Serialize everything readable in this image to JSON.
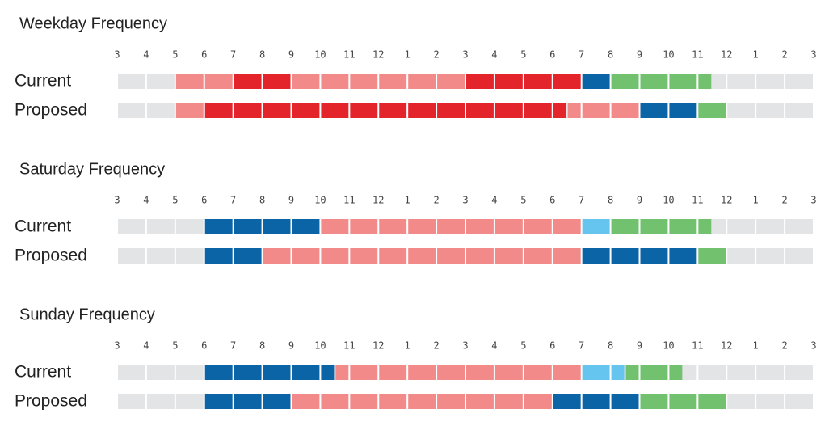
{
  "chart_data": [
    {
      "type": "timeline",
      "title": "Weekday Frequency",
      "xlim": [
        3,
        27
      ],
      "xticks": [
        3,
        4,
        5,
        6,
        7,
        8,
        9,
        10,
        11,
        12,
        {
          "value": 13,
          "label": "1"
        },
        {
          "value": 14,
          "label": "2"
        },
        {
          "value": 15,
          "label": "3"
        },
        {
          "value": 16,
          "label": "4"
        },
        {
          "value": 17,
          "label": "5"
        },
        {
          "value": 18,
          "label": "6"
        },
        {
          "value": 19,
          "label": "7"
        },
        {
          "value": 20,
          "label": "8"
        },
        {
          "value": 21,
          "label": "9"
        },
        {
          "value": 22,
          "label": "10"
        },
        {
          "value": 23,
          "label": "11"
        },
        {
          "value": 24,
          "label": "12"
        },
        {
          "value": 25,
          "label": "1"
        },
        {
          "value": 26,
          "label": "2"
        },
        {
          "value": 27,
          "label": "3"
        }
      ],
      "rows": [
        {
          "label": "Current",
          "segments": [
            {
              "start": 5,
              "end": 7,
              "color": "#f28a8a"
            },
            {
              "start": 7,
              "end": 9,
              "color": "#e3242b"
            },
            {
              "start": 9,
              "end": 15,
              "color": "#f28a8a"
            },
            {
              "start": 15,
              "end": 19,
              "color": "#e3242b"
            },
            {
              "start": 19,
              "end": 20,
              "color": "#0b64a6"
            },
            {
              "start": 20,
              "end": 23.5,
              "color": "#72c16f"
            }
          ]
        },
        {
          "label": "Proposed",
          "segments": [
            {
              "start": 5,
              "end": 6,
              "color": "#f28a8a"
            },
            {
              "start": 6,
              "end": 18.5,
              "color": "#e3242b"
            },
            {
              "start": 18.5,
              "end": 21,
              "color": "#f28a8a"
            },
            {
              "start": 21,
              "end": 23,
              "color": "#0b64a6"
            },
            {
              "start": 23,
              "end": 24,
              "color": "#72c16f"
            }
          ]
        }
      ]
    },
    {
      "type": "timeline",
      "title": "Saturday Frequency",
      "xlim": [
        3,
        27
      ],
      "xticks": [
        3,
        4,
        5,
        6,
        7,
        8,
        9,
        10,
        11,
        12,
        {
          "value": 13,
          "label": "1"
        },
        {
          "value": 14,
          "label": "2"
        },
        {
          "value": 15,
          "label": "3"
        },
        {
          "value": 16,
          "label": "4"
        },
        {
          "value": 17,
          "label": "5"
        },
        {
          "value": 18,
          "label": "6"
        },
        {
          "value": 19,
          "label": "7"
        },
        {
          "value": 20,
          "label": "8"
        },
        {
          "value": 21,
          "label": "9"
        },
        {
          "value": 22,
          "label": "10"
        },
        {
          "value": 23,
          "label": "11"
        },
        {
          "value": 24,
          "label": "12"
        },
        {
          "value": 25,
          "label": "1"
        },
        {
          "value": 26,
          "label": "2"
        },
        {
          "value": 27,
          "label": "3"
        }
      ],
      "rows": [
        {
          "label": "Current",
          "segments": [
            {
              "start": 6,
              "end": 10,
              "color": "#0b64a6"
            },
            {
              "start": 10,
              "end": 19,
              "color": "#f28a8a"
            },
            {
              "start": 19,
              "end": 20,
              "color": "#66c5ee"
            },
            {
              "start": 20,
              "end": 23.5,
              "color": "#72c16f"
            }
          ]
        },
        {
          "label": "Proposed",
          "segments": [
            {
              "start": 6,
              "end": 8,
              "color": "#0b64a6"
            },
            {
              "start": 8,
              "end": 19,
              "color": "#f28a8a"
            },
            {
              "start": 19,
              "end": 23,
              "color": "#0b64a6"
            },
            {
              "start": 23,
              "end": 24,
              "color": "#72c16f"
            }
          ]
        }
      ]
    },
    {
      "type": "timeline",
      "title": "Sunday Frequency",
      "xlim": [
        3,
        27
      ],
      "xticks": [
        3,
        4,
        5,
        6,
        7,
        8,
        9,
        10,
        11,
        12,
        {
          "value": 13,
          "label": "1"
        },
        {
          "value": 14,
          "label": "2"
        },
        {
          "value": 15,
          "label": "3"
        },
        {
          "value": 16,
          "label": "4"
        },
        {
          "value": 17,
          "label": "5"
        },
        {
          "value": 18,
          "label": "6"
        },
        {
          "value": 19,
          "label": "7"
        },
        {
          "value": 20,
          "label": "8"
        },
        {
          "value": 21,
          "label": "9"
        },
        {
          "value": 22,
          "label": "10"
        },
        {
          "value": 23,
          "label": "11"
        },
        {
          "value": 24,
          "label": "12"
        },
        {
          "value": 25,
          "label": "1"
        },
        {
          "value": 26,
          "label": "2"
        },
        {
          "value": 27,
          "label": "3"
        }
      ],
      "rows": [
        {
          "label": "Current",
          "segments": [
            {
              "start": 6,
              "end": 10.5,
              "color": "#0b64a6"
            },
            {
              "start": 10.5,
              "end": 19,
              "color": "#f28a8a"
            },
            {
              "start": 19,
              "end": 20.5,
              "color": "#66c5ee"
            },
            {
              "start": 20.5,
              "end": 22.5,
              "color": "#72c16f"
            }
          ]
        },
        {
          "label": "Proposed",
          "segments": [
            {
              "start": 6,
              "end": 9,
              "color": "#0b64a6"
            },
            {
              "start": 9,
              "end": 18,
              "color": "#f28a8a"
            },
            {
              "start": 18,
              "end": 21,
              "color": "#0b64a6"
            },
            {
              "start": 21,
              "end": 24,
              "color": "#72c16f"
            }
          ]
        }
      ]
    }
  ]
}
